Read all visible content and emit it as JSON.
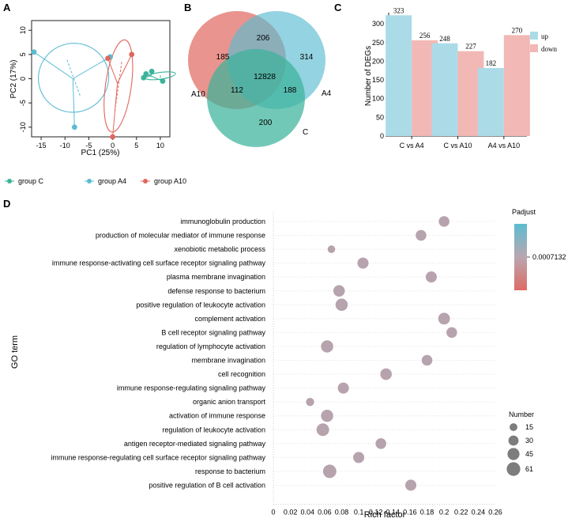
{
  "panel_labels": [
    "A",
    "B",
    "C",
    "D"
  ],
  "colors": {
    "groupC": "#3cb39a",
    "groupA4": "#5bbbd1",
    "groupA10": "#e0675e",
    "bar_up": "#acdbe8",
    "bar_down": "#f2b8b5",
    "dot": "#b7a3ad"
  },
  "chart_data": [
    {
      "id": "A",
      "type": "scatter",
      "title": "",
      "xlabel": "PC1 (25%)",
      "ylabel": "PC2 (17%)",
      "xlim": [
        -17,
        12
      ],
      "ylim": [
        -12,
        12
      ],
      "xticks": [
        -15,
        -10,
        -5,
        0,
        5,
        10
      ],
      "yticks": [
        -10,
        -5,
        0,
        5,
        10
      ],
      "series": [
        {
          "name": "group C",
          "points": [
            [
              7,
              1
            ],
            [
              8.2,
              1.5
            ],
            [
              10.5,
              -0.5
            ],
            [
              6.5,
              0.2
            ]
          ]
        },
        {
          "name": "group A4",
          "points": [
            [
              -16.5,
              5.5
            ],
            [
              -8,
              -10
            ],
            [
              -0.5,
              4.5
            ]
          ]
        },
        {
          "name": "group A10",
          "points": [
            [
              0,
              -12
            ],
            [
              -1,
              4.2
            ],
            [
              4,
              5
            ]
          ]
        }
      ],
      "legend": [
        "group C",
        "group A4",
        "group A10"
      ]
    },
    {
      "id": "B",
      "type": "venn",
      "sets": [
        "A10",
        "A4",
        "C"
      ],
      "regions": {
        "A10_only": "185",
        "A4_only": "314",
        "C_only": "200",
        "A10_A4": "206",
        "A10_C": "112",
        "A4_C": "188",
        "all": "12828"
      }
    },
    {
      "id": "C",
      "type": "bar",
      "categories": [
        "C vs A4",
        "C vs A10",
        "A4 vs A10"
      ],
      "series": [
        {
          "name": "up",
          "values": [
            323,
            248,
            182
          ]
        },
        {
          "name": "down",
          "values": [
            256,
            227,
            270
          ]
        }
      ],
      "ylabel": "Number of DEGs",
      "ylim": [
        0,
        330
      ],
      "yticks": [
        0,
        50,
        100,
        150,
        200,
        250,
        300
      ],
      "legend": [
        "up",
        "down"
      ]
    },
    {
      "id": "D",
      "type": "scatter",
      "xlabel": "Rich factor",
      "ylabel": "GO term",
      "xlim": [
        0,
        0.26
      ],
      "xticks": [
        "0",
        "0.02",
        "0.04",
        "0.06",
        "0.08",
        "0.1",
        "0.12",
        "0.14",
        "0.16",
        "0.18",
        "0.2",
        "0.22",
        "0.24",
        "0.26"
      ],
      "terms": [
        {
          "term": "immunoglobulin production",
          "rich": 0.2,
          "count": 30
        },
        {
          "term": "production of molecular mediator of immune response",
          "rich": 0.173,
          "count": 30
        },
        {
          "term": "xenobiotic metabolic process",
          "rich": 0.068,
          "count": 12
        },
        {
          "term": "immune response-activating cell surface receptor signaling pathway",
          "rich": 0.105,
          "count": 33
        },
        {
          "term": "plasma membrane invagination",
          "rich": 0.185,
          "count": 33
        },
        {
          "term": "defense response to bacterium",
          "rich": 0.077,
          "count": 36
        },
        {
          "term": "positive regulation of leukocyte activation",
          "rich": 0.08,
          "count": 42
        },
        {
          "term": "complement activation",
          "rich": 0.2,
          "count": 38
        },
        {
          "term": "B cell receptor signaling pathway",
          "rich": 0.209,
          "count": 30
        },
        {
          "term": "regulation of lymphocyte activation",
          "rich": 0.063,
          "count": 42
        },
        {
          "term": "membrane invagination",
          "rich": 0.18,
          "count": 30
        },
        {
          "term": "cell recognition",
          "rich": 0.132,
          "count": 36
        },
        {
          "term": "immune response-regulating signaling pathway",
          "rich": 0.082,
          "count": 33
        },
        {
          "term": "organic anion transport",
          "rich": 0.043,
          "count": 15
        },
        {
          "term": "activation of immune response",
          "rich": 0.063,
          "count": 42
        },
        {
          "term": "regulation of leukocyte activation",
          "rich": 0.058,
          "count": 45
        },
        {
          "term": "antigen receptor-mediated signaling pathway",
          "rich": 0.126,
          "count": 30
        },
        {
          "term": "immune response-regulating cell surface receptor signaling pathway",
          "rich": 0.1,
          "count": 33
        },
        {
          "term": "response to bacterium",
          "rich": 0.066,
          "count": 52
        },
        {
          "term": "positive regulation of B cell activation",
          "rich": 0.161,
          "count": 33
        }
      ],
      "color_legend": {
        "title": "Padjust",
        "tick": "0.0007132"
      },
      "size_legend": {
        "title": "Number",
        "values": [
          15,
          30,
          45,
          61
        ]
      }
    }
  ]
}
